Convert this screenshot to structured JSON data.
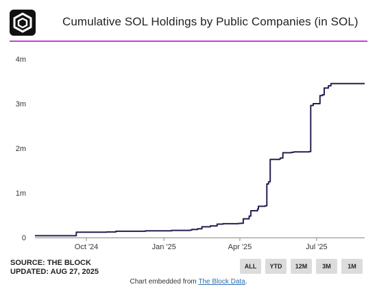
{
  "header": {
    "title": "Cumulative SOL Holdings by Public Companies (in SOL)"
  },
  "chart_data": {
    "type": "line",
    "title": "Cumulative SOL Holdings by Public Companies (in SOL)",
    "xlabel": "",
    "ylabel": "",
    "ylim": [
      0,
      4000000
    ],
    "yticks": [
      0,
      1000000,
      2000000,
      3000000,
      4000000
    ],
    "ytick_labels": [
      "0",
      "1m",
      "2m",
      "3m",
      "4m"
    ],
    "xlim": [
      "2024-08-01",
      "2025-08-27"
    ],
    "xticks": [
      "2024-10-01",
      "2025-01-01",
      "2025-04-01",
      "2025-07-01"
    ],
    "xtick_labels": [
      "Oct '24",
      "Jan '25",
      "Apr '25",
      "Jul '25"
    ],
    "grid": false,
    "legend": "none",
    "line_color": "#231f4f",
    "series": [
      {
        "x": [
          "2024-08-01",
          "2024-09-18",
          "2024-09-19",
          "2024-10-25",
          "2024-11-05",
          "2024-12-10",
          "2025-01-10",
          "2025-02-01",
          "2025-02-03",
          "2025-02-10",
          "2025-02-15",
          "2025-02-25",
          "2025-03-05",
          "2025-03-12",
          "2025-03-30",
          "2025-04-02",
          "2025-04-05",
          "2025-04-12",
          "2025-04-14",
          "2025-04-22",
          "2025-04-23",
          "2025-05-01",
          "2025-05-03",
          "2025-05-05",
          "2025-05-07",
          "2025-05-18",
          "2025-05-19",
          "2025-05-22",
          "2025-06-01",
          "2025-06-04",
          "2025-06-10",
          "2025-06-22",
          "2025-06-24",
          "2025-06-27",
          "2025-07-03",
          "2025-07-05",
          "2025-07-08",
          "2025-07-10",
          "2025-07-15",
          "2025-07-18",
          "2025-08-27"
        ],
        "y": [
          40000,
          40000,
          120000,
          125000,
          140000,
          150000,
          160000,
          165000,
          180000,
          195000,
          240000,
          260000,
          300000,
          310000,
          315000,
          320000,
          420000,
          480000,
          600000,
          640000,
          700000,
          710000,
          1200000,
          1250000,
          1750000,
          1760000,
          1780000,
          1900000,
          1910000,
          1920000,
          1920000,
          1925000,
          2960000,
          3000000,
          3000000,
          3180000,
          3200000,
          3350000,
          3400000,
          3450000,
          3450000
        ]
      }
    ]
  },
  "footer": {
    "source": "SOURCE: THE BLOCK",
    "updated": "UPDATED: AUG 27, 2025",
    "embed_prefix": "Chart embedded from ",
    "embed_link": "The Block Data",
    "embed_suffix": "."
  },
  "range_buttons": [
    "ALL",
    "YTD",
    "12M",
    "3M",
    "1M"
  ],
  "colors": {
    "accent": "#c63fd6",
    "line": "#231f4f",
    "button_bg": "#dcdcdc"
  }
}
